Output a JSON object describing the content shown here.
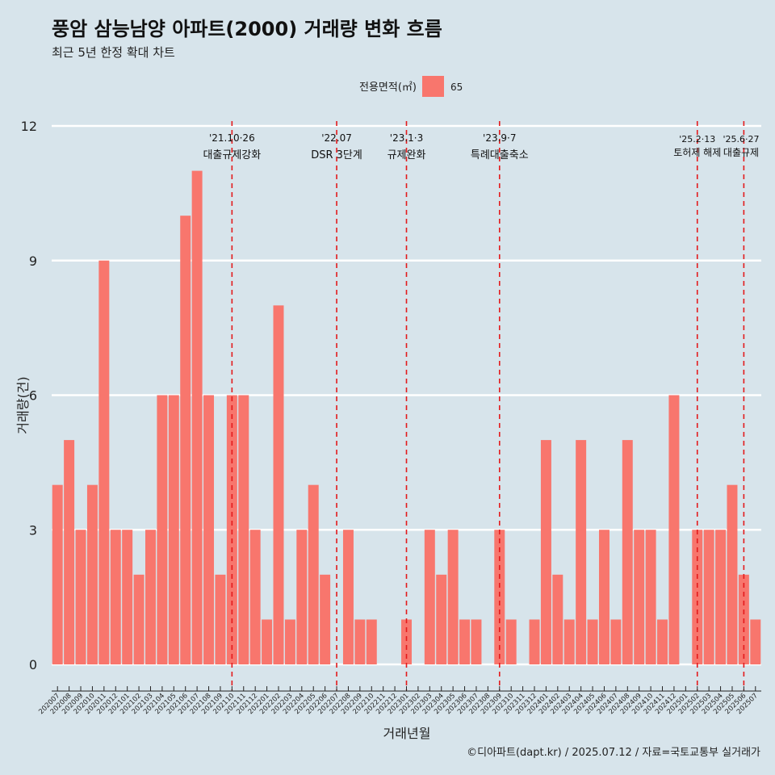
{
  "chart_data": {
    "type": "bar",
    "title": "풍암 삼능남양 아파트(2000) 거래량 변화 흐름",
    "subtitle": "최근 5년 한정 확대 차트",
    "xlabel": "거래년월",
    "ylabel": "거래량(건)",
    "legend": {
      "title": "전용면적(㎡)",
      "position": "top",
      "entries": [
        {
          "name": "65",
          "color": "#f8766d"
        }
      ]
    },
    "caption": "©디아파트(dapt.kr) / 2025.07.12 / 자료=국토교통부 실거래가",
    "ylim": [
      0,
      12
    ],
    "yticks": [
      0,
      3,
      6,
      9,
      12
    ],
    "grid": "horizontal",
    "colors": {
      "background": "#d7e4eb",
      "bar": "#f8766d",
      "annotation_line": "#e31a1c",
      "grid": "#ffffff"
    },
    "categories": [
      "202007",
      "202008",
      "202009",
      "202010",
      "202011",
      "202012",
      "202101",
      "202102",
      "202103",
      "202104",
      "202105",
      "202106",
      "202107",
      "202108",
      "202109",
      "202110",
      "202111",
      "202112",
      "202201",
      "202202",
      "202203",
      "202204",
      "202205",
      "202206",
      "202207",
      "202208",
      "202209",
      "202210",
      "202211",
      "202212",
      "202301",
      "202302",
      "202303",
      "202304",
      "202305",
      "202306",
      "202307",
      "202308",
      "202309",
      "202310",
      "202311",
      "202312",
      "202401",
      "202402",
      "202403",
      "202404",
      "202405",
      "202406",
      "202407",
      "202408",
      "202409",
      "202410",
      "202411",
      "202412",
      "202501",
      "202502",
      "202503",
      "202504",
      "202505",
      "202506",
      "202507"
    ],
    "series": [
      {
        "name": "65",
        "values": [
          4,
          5,
          3,
          4,
          9,
          3,
          3,
          2,
          3,
          6,
          6,
          10,
          11,
          6,
          2,
          6,
          6,
          3,
          1,
          8,
          1,
          3,
          4,
          2,
          0,
          3,
          1,
          1,
          0,
          0,
          1,
          0,
          3,
          2,
          3,
          1,
          1,
          0,
          3,
          1,
          0,
          1,
          5,
          2,
          1,
          5,
          1,
          3,
          1,
          5,
          3,
          3,
          1,
          6,
          0,
          3,
          3,
          3,
          4,
          2,
          1
        ]
      }
    ],
    "annotations": [
      {
        "x": "202110",
        "date": "'21.10·26",
        "label": "대출규제강화"
      },
      {
        "x": "202207",
        "date": "'22.07",
        "label": "DSR 3단계"
      },
      {
        "x": "202301",
        "date": "'23.1·3",
        "label": "규제완화"
      },
      {
        "x": "202309",
        "date": "'23.9·7",
        "label": "특례대출축소"
      },
      {
        "x": "202502",
        "date": "'25.2·13",
        "label": "토허제 해제"
      },
      {
        "x": "202506",
        "date": "'25.6·27",
        "label": "대출규제"
      }
    ]
  }
}
